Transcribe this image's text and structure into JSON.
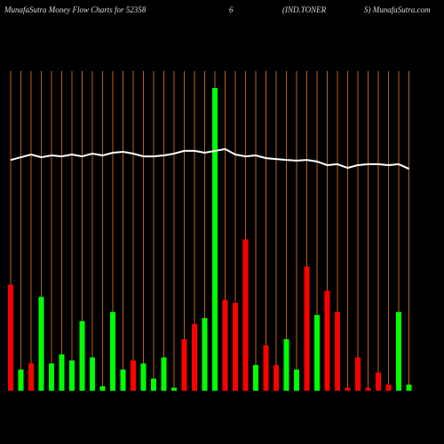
{
  "chart_data": {
    "type": "bar",
    "title_parts": [
      "MunafaSutra  Money Flow  Charts for 52358",
      "6",
      "(IND.TONER",
      "S) MunafaSutra.com"
    ],
    "values": [
      35,
      7,
      9,
      31,
      9,
      12,
      10,
      23,
      11,
      1.5,
      26,
      7,
      10,
      9,
      4,
      11,
      1,
      17,
      22,
      24,
      100,
      30,
      29,
      50,
      8.5,
      15,
      8.5,
      17,
      7,
      41,
      25,
      33,
      26,
      1,
      11,
      1,
      6,
      2,
      26,
      2
    ],
    "colors": [
      "#ff0000",
      "#00ff00",
      "#ff0000",
      "#00ff00",
      "#00ff00",
      "#00ff00",
      "#00ff00",
      "#00ff00",
      "#00ff00",
      "#00ff00",
      "#00ff00",
      "#00ff00",
      "#ff0000",
      "#00ff00",
      "#00ff00",
      "#00ff00",
      "#00ff00",
      "#ff0000",
      "#ff0000",
      "#00ff00",
      "#00ff00",
      "#ff0000",
      "#ff0000",
      "#ff0000",
      "#00ff00",
      "#ff0000",
      "#ff0000",
      "#00ff00",
      "#00ff00",
      "#ff0000",
      "#00ff00",
      "#ff0000",
      "#ff0000",
      "#ff0000",
      "#ff0000",
      "#ff0000",
      "#ff0000",
      "#ff0000",
      "#00ff00",
      "#00ff00"
    ],
    "line_values": [
      76.2,
      77.1,
      78.0,
      77.1,
      77.7,
      77.4,
      78.0,
      77.4,
      78.3,
      77.7,
      78.6,
      78.9,
      78.3,
      77.4,
      77.4,
      77.7,
      78.3,
      79.2,
      79.2,
      78.6,
      79.2,
      79.8,
      78.0,
      77.4,
      77.7,
      76.8,
      76.5,
      76.2,
      76.0,
      76.2,
      75.7,
      74.5,
      74.8,
      73.6,
      74.5,
      74.8,
      74.8,
      74.5,
      74.8,
      73.3
    ],
    "line_color": "#ffffff",
    "grid_color": "#b8621b",
    "grid": true,
    "ylim": [
      0,
      100
    ]
  }
}
